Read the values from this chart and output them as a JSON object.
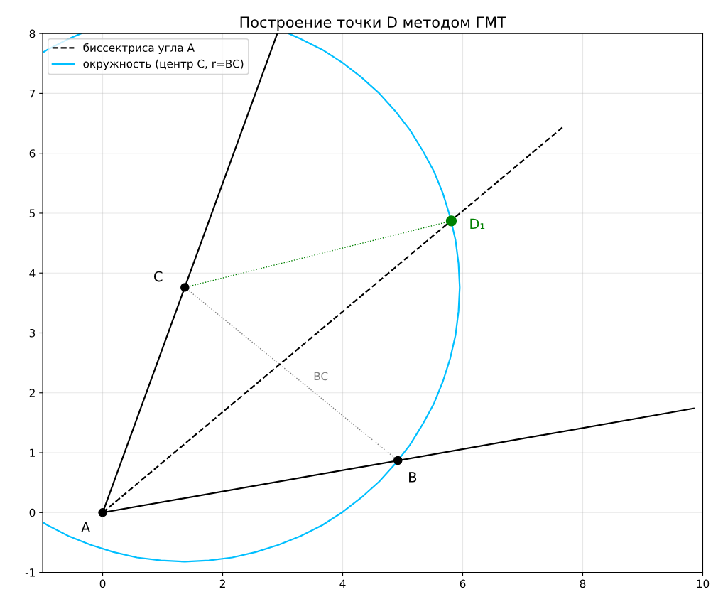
{
  "chart_data": {
    "type": "line",
    "title": "Построение точки D методом ГМТ",
    "xlim": [
      -1,
      10
    ],
    "ylim": [
      -1,
      8
    ],
    "xticks": [
      0,
      2,
      4,
      6,
      8,
      10
    ],
    "yticks": [
      -1,
      0,
      1,
      2,
      3,
      4,
      5,
      6,
      7,
      8
    ],
    "grid": true,
    "legend": "top left",
    "series": [
      {
        "color": "#000000",
        "line_style": "solid",
        "x": [
          0,
          9.85
        ],
        "values": [
          0,
          1.74
        ]
      },
      {
        "color": "#000000",
        "line_style": "solid",
        "x": [
          0,
          2.91
        ],
        "values": [
          0,
          8.0
        ]
      },
      {
        "name": "биссектриса угла A",
        "color": "#000000",
        "line_style": "dashed",
        "x": [
          0,
          7.66
        ],
        "values": [
          0,
          6.43
        ]
      },
      {
        "name": "окружность (центр C, r=BC)",
        "color": "#00bfff",
        "line_style": "solid",
        "x": [
          -1,
          -0.92,
          -0.57,
          -0.2,
          0.18,
          0.57,
          0.97,
          1.37,
          1.77,
          2.16,
          2.55,
          2.93,
          3.3,
          3.66,
          4.0,
          4.31,
          4.61,
          4.88,
          5.12,
          5.33,
          5.52,
          5.67,
          5.79,
          5.88,
          5.93,
          5.95,
          5.93,
          5.88,
          5.79,
          5.67,
          5.52,
          5.33,
          5.12,
          4.88,
          4.61,
          4.31,
          4.0,
          3.66,
          3.3,
          3.1,
          null,
          -0.36,
          -0.57,
          -0.92,
          -1
        ],
        "values": [
          -0.16,
          -0.21,
          -0.39,
          -0.54,
          -0.66,
          -0.75,
          -0.8,
          -0.82,
          -0.8,
          -0.75,
          -0.66,
          -0.54,
          -0.39,
          -0.21,
          0.01,
          0.25,
          0.52,
          0.82,
          1.13,
          1.47,
          1.82,
          2.19,
          2.57,
          2.96,
          3.36,
          3.76,
          4.16,
          4.55,
          4.94,
          5.33,
          5.7,
          6.05,
          6.39,
          6.7,
          7.0,
          7.27,
          7.51,
          7.73,
          7.91,
          8.0,
          null,
          8.0,
          7.91,
          7.73,
          7.68
        ]
      },
      {
        "color": "#808080",
        "line_style": "dotted",
        "x": [
          1.37,
          4.92
        ],
        "values": [
          3.76,
          0.87
        ]
      },
      {
        "color": "#008000",
        "line_style": "dotted",
        "x": [
          1.37,
          5.81
        ],
        "values": [
          3.76,
          4.87
        ]
      },
      {
        "type": "scatter",
        "color": "#000000",
        "marker": "circle",
        "x": [
          0,
          4.92,
          1.37
        ],
        "values": [
          0,
          0.87,
          3.76
        ]
      },
      {
        "type": "scatter",
        "color": "#008000",
        "marker": "circle",
        "x": [
          5.81
        ],
        "values": [
          4.87
        ]
      }
    ],
    "annotations": [
      {
        "text": "A",
        "x": 0,
        "y": 0
      },
      {
        "text": "B",
        "x": 4.92,
        "y": 0.87
      },
      {
        "text": "C",
        "x": 1.37,
        "y": 3.76
      },
      {
        "text": "D₁",
        "x": 5.81,
        "y": 4.87
      },
      {
        "text": "BC",
        "x": 3.15,
        "y": 2.31
      }
    ]
  }
}
